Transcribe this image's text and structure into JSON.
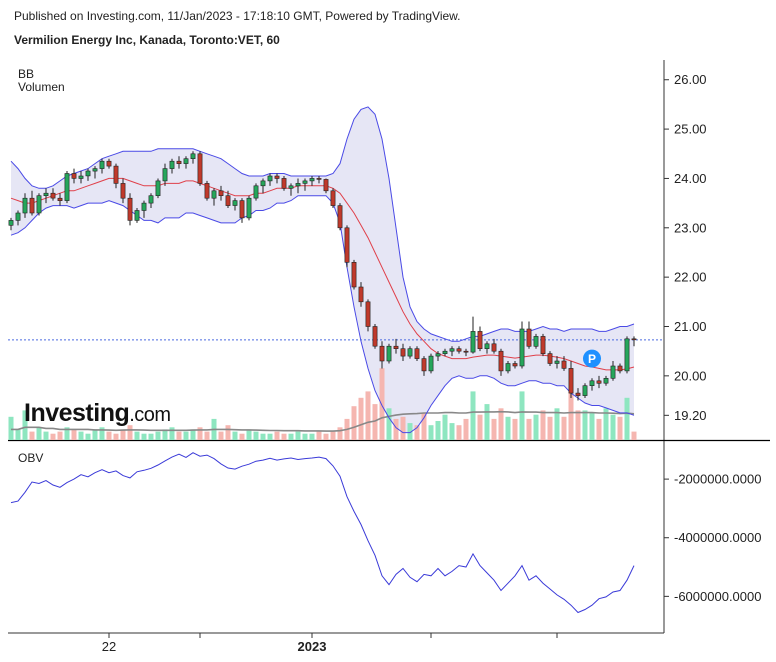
{
  "header": {
    "published": "Published on Investing.com, 11/Jan/2023 - 17:18:10 GMT, Powered by TradingView.",
    "title": "Vermilion Energy Inc, Kanada, Toronto:VET, 60"
  },
  "colors": {
    "up": "#26a65b",
    "down": "#c0392b",
    "vol_up": "#8ee6c0",
    "vol_down": "#f5b6b0",
    "band": "#4a4ae6",
    "band_fill": "#e6e6f5",
    "mid": "#e0404a",
    "obv": "#3a3ad8",
    "last_price": "#4a6ae0"
  },
  "chart_data": [
    {
      "type": "candlestick",
      "panel": "price",
      "legend": [
        "BB",
        "Volumen"
      ],
      "ylim": [
        18.7,
        26.4
      ],
      "y_ticks": [
        "26.00",
        "25.00",
        "24.00",
        "23.00",
        "22.00",
        "21.00",
        "20.00",
        "19.20"
      ],
      "x_ticks": [
        "22",
        "2023"
      ],
      "marker_label": "P",
      "logo": "Investing.com",
      "last_price": 20.73,
      "ohlc": [
        [
          23.05,
          23.2,
          22.95,
          23.15
        ],
        [
          23.15,
          23.35,
          23.05,
          23.3
        ],
        [
          23.3,
          23.7,
          23.2,
          23.6
        ],
        [
          23.6,
          23.75,
          23.25,
          23.3
        ],
        [
          23.3,
          23.7,
          23.25,
          23.65
        ],
        [
          23.65,
          23.8,
          23.5,
          23.7
        ],
        [
          23.7,
          23.8,
          23.55,
          23.6
        ],
        [
          23.6,
          23.7,
          23.45,
          23.55
        ],
        [
          23.55,
          24.15,
          23.5,
          24.1
        ],
        [
          24.1,
          24.2,
          23.9,
          24.0
        ],
        [
          24.0,
          24.15,
          23.9,
          24.05
        ],
        [
          24.05,
          24.2,
          23.95,
          24.15
        ],
        [
          24.15,
          24.25,
          24.0,
          24.2
        ],
        [
          24.2,
          24.4,
          24.1,
          24.35
        ],
        [
          24.35,
          24.4,
          24.2,
          24.25
        ],
        [
          24.25,
          24.3,
          23.8,
          23.9
        ],
        [
          23.9,
          24.0,
          23.5,
          23.6
        ],
        [
          23.6,
          23.7,
          23.05,
          23.15
        ],
        [
          23.15,
          23.4,
          23.1,
          23.35
        ],
        [
          23.35,
          23.55,
          23.2,
          23.5
        ],
        [
          23.5,
          23.7,
          23.4,
          23.65
        ],
        [
          23.65,
          24.0,
          23.6,
          23.95
        ],
        [
          23.95,
          24.3,
          23.85,
          24.2
        ],
        [
          24.2,
          24.4,
          24.1,
          24.35
        ],
        [
          24.35,
          24.45,
          24.2,
          24.3
        ],
        [
          24.3,
          24.45,
          24.2,
          24.4
        ],
        [
          24.4,
          24.55,
          24.3,
          24.5
        ],
        [
          24.5,
          24.55,
          23.85,
          23.9
        ],
        [
          23.9,
          23.95,
          23.55,
          23.6
        ],
        [
          23.6,
          23.8,
          23.45,
          23.75
        ],
        [
          23.75,
          23.85,
          23.55,
          23.65
        ],
        [
          23.65,
          23.75,
          23.4,
          23.45
        ],
        [
          23.45,
          23.6,
          23.35,
          23.55
        ],
        [
          23.55,
          23.6,
          23.1,
          23.2
        ],
        [
          23.2,
          23.65,
          23.15,
          23.6
        ],
        [
          23.6,
          23.9,
          23.55,
          23.85
        ],
        [
          23.85,
          24.0,
          23.7,
          23.95
        ],
        [
          23.95,
          24.1,
          23.85,
          24.05
        ],
        [
          24.05,
          24.1,
          23.9,
          24.0
        ],
        [
          24.0,
          24.05,
          23.75,
          23.8
        ],
        [
          23.8,
          23.9,
          23.65,
          23.85
        ],
        [
          23.85,
          24.0,
          23.7,
          23.9
        ],
        [
          23.9,
          24.0,
          23.75,
          23.95
        ],
        [
          23.95,
          24.05,
          23.85,
          24.0
        ],
        [
          24.0,
          24.05,
          23.9,
          23.98
        ],
        [
          23.98,
          24.0,
          23.7,
          23.75
        ],
        [
          23.75,
          23.8,
          23.4,
          23.45
        ],
        [
          23.45,
          23.5,
          22.95,
          23.0
        ],
        [
          23.0,
          23.05,
          22.2,
          22.3
        ],
        [
          22.3,
          22.35,
          21.75,
          21.8
        ],
        [
          21.8,
          21.9,
          21.4,
          21.5
        ],
        [
          21.5,
          21.55,
          20.9,
          21.0
        ],
        [
          21.0,
          21.05,
          20.55,
          20.6
        ],
        [
          20.6,
          20.7,
          20.15,
          20.3
        ],
        [
          20.3,
          20.65,
          20.25,
          20.6
        ],
        [
          20.6,
          20.75,
          20.45,
          20.55
        ],
        [
          20.55,
          20.65,
          20.3,
          20.4
        ],
        [
          20.4,
          20.6,
          20.35,
          20.55
        ],
        [
          20.55,
          20.6,
          20.3,
          20.35
        ],
        [
          20.35,
          20.4,
          20.0,
          20.1
        ],
        [
          20.1,
          20.45,
          20.05,
          20.4
        ],
        [
          20.4,
          20.5,
          20.3,
          20.45
        ],
        [
          20.45,
          20.55,
          20.4,
          20.5
        ],
        [
          20.5,
          20.6,
          20.4,
          20.55
        ],
        [
          20.55,
          20.6,
          20.45,
          20.5
        ],
        [
          20.5,
          20.55,
          20.4,
          20.48
        ],
        [
          20.48,
          21.2,
          20.45,
          20.9
        ],
        [
          20.9,
          21.0,
          20.5,
          20.55
        ],
        [
          20.55,
          20.7,
          20.45,
          20.65
        ],
        [
          20.65,
          20.75,
          20.45,
          20.5
        ],
        [
          20.5,
          20.55,
          20.0,
          20.1
        ],
        [
          20.1,
          20.3,
          20.05,
          20.25
        ],
        [
          20.25,
          20.3,
          20.15,
          20.2
        ],
        [
          20.2,
          21.1,
          20.15,
          20.95
        ],
        [
          20.95,
          21.1,
          20.55,
          20.6
        ],
        [
          20.6,
          20.85,
          20.55,
          20.8
        ],
        [
          20.8,
          20.85,
          20.4,
          20.45
        ],
        [
          20.45,
          20.5,
          20.2,
          20.25
        ],
        [
          20.25,
          20.4,
          20.15,
          20.3
        ],
        [
          20.3,
          20.4,
          20.1,
          20.15
        ],
        [
          20.15,
          20.3,
          19.55,
          19.65
        ],
        [
          19.65,
          19.75,
          19.5,
          19.6
        ],
        [
          19.6,
          19.85,
          19.55,
          19.8
        ],
        [
          19.8,
          19.95,
          19.7,
          19.9
        ],
        [
          19.9,
          20.0,
          19.75,
          19.85
        ],
        [
          19.85,
          20.0,
          19.8,
          19.95
        ],
        [
          19.95,
          20.3,
          19.9,
          20.2
        ],
        [
          20.2,
          20.25,
          20.05,
          20.1
        ],
        [
          20.1,
          20.8,
          20.05,
          20.75
        ],
        [
          20.75,
          20.8,
          20.6,
          20.73
        ]
      ],
      "bollinger": {
        "upper": [
          24.35,
          24.2,
          24.0,
          23.85,
          23.8,
          23.8,
          23.85,
          23.95,
          24.05,
          24.1,
          24.15,
          24.2,
          24.3,
          24.4,
          24.45,
          24.5,
          24.55,
          24.55,
          24.55,
          24.55,
          24.55,
          24.6,
          24.6,
          24.6,
          24.6,
          24.6,
          24.6,
          24.55,
          24.5,
          24.45,
          24.4,
          24.3,
          24.2,
          24.1,
          24.05,
          24.05,
          24.05,
          24.1,
          24.1,
          24.1,
          24.05,
          24.05,
          24.05,
          24.05,
          24.05,
          24.05,
          24.1,
          24.3,
          24.8,
          25.2,
          25.4,
          25.45,
          25.3,
          24.8,
          24.0,
          23.0,
          22.0,
          21.4,
          21.1,
          20.95,
          20.85,
          20.8,
          20.75,
          20.7,
          20.7,
          20.75,
          20.8,
          20.8,
          20.85,
          20.9,
          20.95,
          20.95,
          20.9,
          20.9,
          20.9,
          20.95,
          21.0,
          20.95,
          20.95,
          20.9,
          20.95,
          20.95,
          20.95,
          20.95,
          20.9,
          20.9,
          20.95,
          21.0,
          21.0,
          21.05
        ],
        "middle": [
          23.6,
          23.55,
          23.5,
          23.5,
          23.55,
          23.6,
          23.65,
          23.7,
          23.75,
          23.75,
          23.8,
          23.85,
          23.9,
          23.95,
          24.0,
          24.0,
          24.0,
          23.95,
          23.9,
          23.85,
          23.85,
          23.85,
          23.9,
          23.9,
          23.9,
          23.95,
          23.95,
          23.9,
          23.85,
          23.8,
          23.75,
          23.7,
          23.65,
          23.65,
          23.65,
          23.7,
          23.7,
          23.75,
          23.8,
          23.8,
          23.8,
          23.85,
          23.85,
          23.85,
          23.85,
          23.85,
          23.8,
          23.7,
          23.5,
          23.3,
          23.05,
          22.8,
          22.5,
          22.2,
          21.9,
          21.6,
          21.3,
          21.05,
          20.85,
          20.7,
          20.55,
          20.45,
          20.4,
          20.35,
          20.35,
          20.35,
          20.38,
          20.4,
          20.42,
          20.42,
          20.4,
          20.38,
          20.36,
          20.38,
          20.4,
          20.42,
          20.42,
          20.4,
          20.38,
          20.35,
          20.3,
          20.25,
          20.2,
          20.18,
          20.15,
          20.12,
          20.12,
          20.12,
          20.14,
          20.18
        ],
        "lower": [
          22.85,
          22.9,
          23.0,
          23.15,
          23.3,
          23.4,
          23.45,
          23.45,
          23.45,
          23.4,
          23.45,
          23.5,
          23.5,
          23.5,
          23.55,
          23.5,
          23.45,
          23.35,
          23.25,
          23.15,
          23.15,
          23.1,
          23.2,
          23.2,
          23.2,
          23.3,
          23.3,
          23.25,
          23.2,
          23.15,
          23.1,
          23.1,
          23.1,
          23.2,
          23.25,
          23.35,
          23.35,
          23.4,
          23.5,
          23.5,
          23.55,
          23.65,
          23.65,
          23.65,
          23.65,
          23.65,
          23.5,
          23.1,
          22.2,
          21.4,
          20.7,
          20.15,
          19.7,
          19.4,
          19.15,
          18.95,
          18.85,
          18.85,
          18.95,
          19.15,
          19.4,
          19.6,
          19.8,
          19.95,
          20.0,
          19.95,
          19.95,
          20.0,
          20.0,
          19.95,
          19.85,
          19.8,
          19.8,
          19.85,
          19.9,
          19.9,
          19.85,
          19.85,
          19.8,
          19.8,
          19.65,
          19.55,
          19.45,
          19.4,
          19.4,
          19.35,
          19.3,
          19.25,
          19.25,
          19.2
        ]
      },
      "volume": [
        1.1,
        0.5,
        1.4,
        0.4,
        0.6,
        0.4,
        0.3,
        0.4,
        0.6,
        0.5,
        0.4,
        0.3,
        0.5,
        0.6,
        0.4,
        0.3,
        0.5,
        0.7,
        0.4,
        0.3,
        0.3,
        0.4,
        0.5,
        0.6,
        0.4,
        0.4,
        0.5,
        0.6,
        0.4,
        1.0,
        0.4,
        0.7,
        0.4,
        0.3,
        0.5,
        0.4,
        0.3,
        0.3,
        0.4,
        0.3,
        0.3,
        0.4,
        0.3,
        0.3,
        0.4,
        0.3,
        0.4,
        0.6,
        1.0,
        1.6,
        2.0,
        2.3,
        1.7,
        3.4,
        1.5,
        1.0,
        1.1,
        0.8,
        0.7,
        1.3,
        0.7,
        0.9,
        1.2,
        0.8,
        0.7,
        1.0,
        2.3,
        1.2,
        1.7,
        1.0,
        1.5,
        1.1,
        1.0,
        2.3,
        1.0,
        1.2,
        1.4,
        1.1,
        1.5,
        1.1,
        2.3,
        1.4,
        1.4,
        1.3,
        1.0,
        1.5,
        1.2,
        1.1,
        2.0,
        0.4
      ],
      "volume_ma": [
        0.5,
        0.5,
        0.6,
        0.6,
        0.6,
        0.55,
        0.55,
        0.5,
        0.5,
        0.5,
        0.5,
        0.5,
        0.48,
        0.48,
        0.47,
        0.46,
        0.47,
        0.48,
        0.48,
        0.47,
        0.46,
        0.46,
        0.46,
        0.46,
        0.46,
        0.46,
        0.47,
        0.48,
        0.48,
        0.5,
        0.5,
        0.5,
        0.49,
        0.48,
        0.48,
        0.47,
        0.46,
        0.45,
        0.45,
        0.44,
        0.44,
        0.44,
        0.43,
        0.43,
        0.43,
        0.42,
        0.42,
        0.44,
        0.5,
        0.6,
        0.72,
        0.84,
        0.9,
        1.05,
        1.12,
        1.18,
        1.22,
        1.24,
        1.25,
        1.28,
        1.28,
        1.28,
        1.3,
        1.3,
        1.28,
        1.28,
        1.32,
        1.32,
        1.33,
        1.33,
        1.34,
        1.33,
        1.3,
        1.33,
        1.32,
        1.32,
        1.3,
        1.3,
        1.3,
        1.28,
        1.3,
        1.3,
        1.3,
        1.3,
        1.28,
        1.28,
        1.27,
        1.25,
        1.27,
        1.24
      ],
      "volume_max": 4.5
    },
    {
      "type": "line",
      "panel": "obv",
      "legend": [
        "OBV"
      ],
      "ylim": [
        -7250000,
        -700000
      ],
      "y_ticks": [
        -2000000,
        -4000000,
        -6000000
      ],
      "y_tick_labels": [
        "-2000000.0000",
        "-4000000.0000",
        "-6000000.0000"
      ],
      "values": [
        -2800000,
        -2750000,
        -2450000,
        -2100000,
        -2150000,
        -2050000,
        -2200000,
        -2280000,
        -2120000,
        -2000000,
        -1850000,
        -1920000,
        -1780000,
        -1680000,
        -1780000,
        -1720000,
        -1880000,
        -1960000,
        -1750000,
        -1700000,
        -1630000,
        -1520000,
        -1380000,
        -1250000,
        -1150000,
        -1260000,
        -1100000,
        -1220000,
        -1180000,
        -1300000,
        -1480000,
        -1620000,
        -1660000,
        -1560000,
        -1490000,
        -1390000,
        -1350000,
        -1290000,
        -1350000,
        -1310000,
        -1280000,
        -1330000,
        -1300000,
        -1280000,
        -1250000,
        -1300000,
        -1550000,
        -1900000,
        -2600000,
        -3100000,
        -3550000,
        -4100000,
        -4600000,
        -5300000,
        -5600000,
        -5250000,
        -5050000,
        -5350000,
        -5500000,
        -5250000,
        -5300000,
        -5050000,
        -5300000,
        -5150000,
        -4950000,
        -5000000,
        -4550000,
        -4950000,
        -5200000,
        -5450000,
        -5800000,
        -5550000,
        -5300000,
        -4950000,
        -5450000,
        -5300000,
        -5550000,
        -5750000,
        -5950000,
        -6100000,
        -6300000,
        -6550000,
        -6450000,
        -6300000,
        -6080000,
        -6020000,
        -5850000,
        -5800000,
        -5450000,
        -4950000
      ]
    }
  ]
}
